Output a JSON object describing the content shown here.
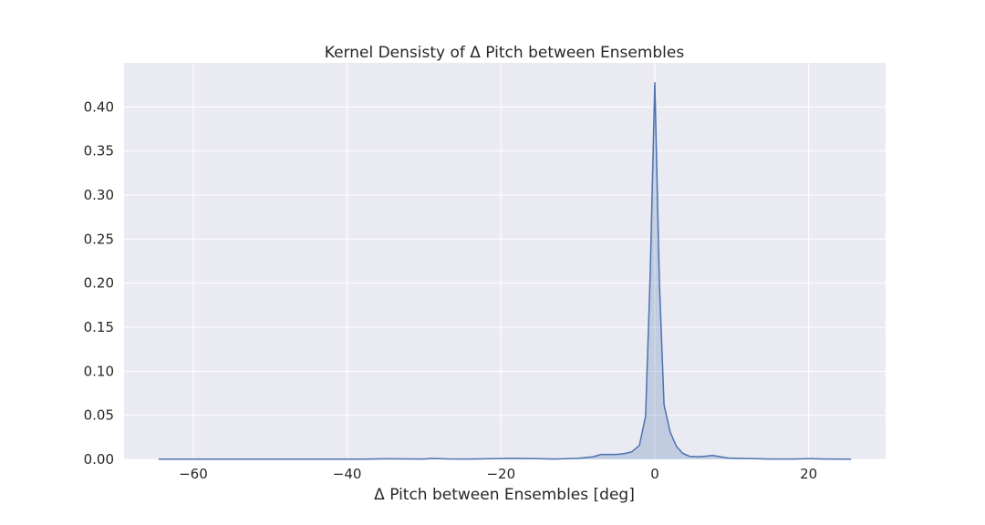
{
  "chart_data": {
    "type": "area",
    "title": "Kernel Densisty of Δ Pitch between Ensembles",
    "xlabel": "Δ Pitch between Ensembles [deg]",
    "ylabel": "",
    "xlim": [
      -69,
      30
    ],
    "ylim": [
      0,
      0.45
    ],
    "xticks": [
      -60,
      -40,
      -20,
      0,
      20
    ],
    "xtick_labels": [
      "−60",
      "−40",
      "−20",
      "0",
      "20"
    ],
    "yticks": [
      0.0,
      0.05,
      0.1,
      0.15,
      0.2,
      0.25,
      0.3,
      0.35,
      0.4
    ],
    "ytick_labels": [
      "0.00",
      "0.05",
      "0.10",
      "0.15",
      "0.20",
      "0.25",
      "0.30",
      "0.35",
      "0.40"
    ],
    "grid": true,
    "legend": "none",
    "series": [
      {
        "color": "#4c72b0",
        "fill_color": "#4c72b0",
        "fill_opacity": 0.25,
        "x": [
          -64.5,
          -55,
          -45,
          -38,
          -35,
          -30,
          -29,
          -27,
          -24,
          -21,
          -19,
          -16,
          -13,
          -10,
          -8,
          -7,
          -6,
          -5,
          -4,
          -3,
          -2,
          -1.2,
          -0.6,
          0,
          0.6,
          1.2,
          2,
          2.8,
          3.6,
          4.5,
          5.5,
          6.5,
          7.5,
          8.5,
          9.5,
          11,
          13,
          15,
          18,
          20,
          22,
          25.5
        ],
        "y": [
          0.0003,
          0.0003,
          0.0003,
          0.0003,
          0.0006,
          0.0004,
          0.001,
          0.0005,
          0.0004,
          0.0008,
          0.0012,
          0.0009,
          0.0004,
          0.0012,
          0.003,
          0.0055,
          0.0055,
          0.0055,
          0.0065,
          0.0085,
          0.016,
          0.049,
          0.21,
          0.428,
          0.2,
          0.062,
          0.031,
          0.015,
          0.007,
          0.0035,
          0.003,
          0.0035,
          0.0045,
          0.003,
          0.0015,
          0.0012,
          0.0008,
          0.0004,
          0.0004,
          0.0008,
          0.0004,
          0.0003
        ]
      }
    ]
  }
}
